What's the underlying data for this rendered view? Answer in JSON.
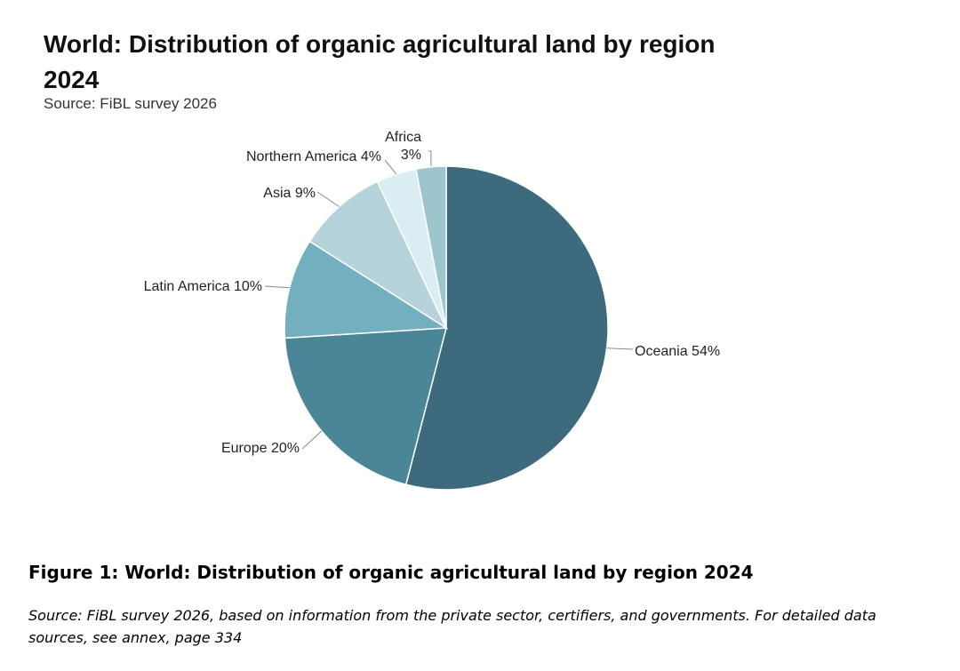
{
  "chart_data": {
    "type": "pie",
    "title": "World: Distribution of organic agricultural land by region 2024",
    "subtitle": "Source: FiBL survey 2026",
    "slices": [
      {
        "label": "Oceania",
        "value": 54,
        "value_text": "54%",
        "color": "#3d6a7d"
      },
      {
        "label": "Europe",
        "value": 20,
        "value_text": "20%",
        "color": "#4a8598"
      },
      {
        "label": "Latin America",
        "value": 10,
        "value_text": "10%",
        "color": "#72afbf"
      },
      {
        "label": "Asia",
        "value": 9,
        "value_text": "9%",
        "color": "#b6d2da"
      },
      {
        "label": "Northern America",
        "value": 4,
        "value_text": "4%",
        "color": "#d9edf3"
      },
      {
        "label": "Africa",
        "value": 3,
        "value_text": "3%",
        "color": "#9cc5cc"
      }
    ]
  },
  "figure": {
    "caption": "Figure 1: World: Distribution of organic agricultural land by region 2024",
    "source_note": "Source: FiBL survey 2026, based on information from the private sector, certifiers, and governments.  For detailed data sources, see annex, page 334"
  }
}
